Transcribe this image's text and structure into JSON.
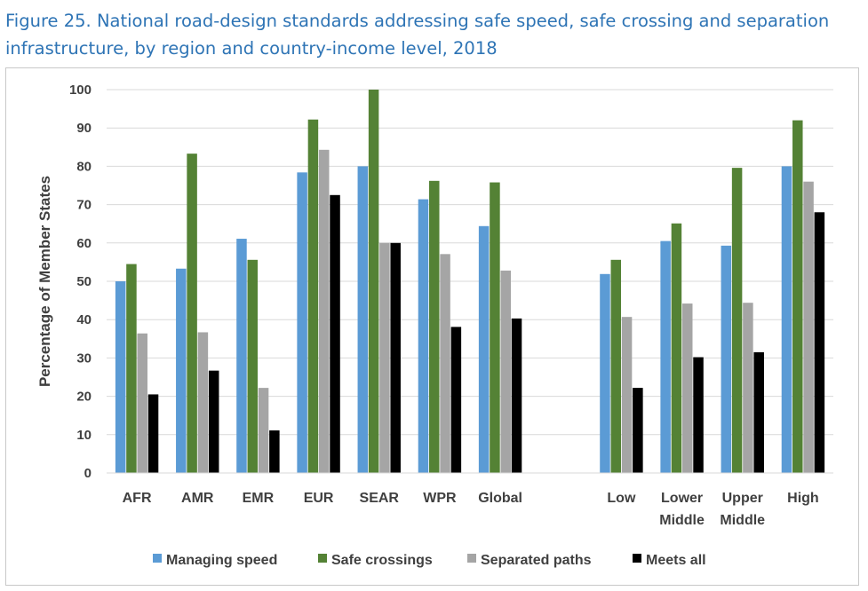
{
  "figure_title": "Figure 25. National road-design standards addressing safe speed, safe crossing and separation infrastructure, by region and country-income level, 2018",
  "chart_data": {
    "type": "bar",
    "title": "Figure 25. National road-design standards addressing safe speed, safe crossing and separation infrastructure, by region and country-income level, 2018",
    "xlabel": "",
    "ylabel": "Percentage of Member States",
    "ylim": [
      0,
      100
    ],
    "yticks": [
      0,
      10,
      20,
      30,
      40,
      50,
      60,
      70,
      80,
      90,
      100
    ],
    "grid": true,
    "legend_position": "bottom",
    "categories": [
      "AFR",
      "AMR",
      "EMR",
      "EUR",
      "SEAR",
      "WPR",
      "Global",
      "",
      "Low",
      "Lower Middle",
      "Upper Middle",
      "High"
    ],
    "category_lines": [
      [
        "AFR"
      ],
      [
        "AMR"
      ],
      [
        "EMR"
      ],
      [
        "EUR"
      ],
      [
        "SEAR"
      ],
      [
        "WPR"
      ],
      [
        "Global"
      ],
      [],
      [
        "Low"
      ],
      [
        "Lower",
        "Middle"
      ],
      [
        "Upper",
        "Middle"
      ],
      [
        "High"
      ]
    ],
    "series": [
      {
        "name": "Managing speed",
        "color": "#5b9bd5",
        "values": [
          50,
          53.3,
          61.1,
          78.4,
          80,
          71.4,
          64.4,
          null,
          51.9,
          60.5,
          59.3,
          80
        ]
      },
      {
        "name": "Safe crossings",
        "color": "#548235",
        "values": [
          54.5,
          83.3,
          55.6,
          92.2,
          100,
          76.2,
          75.8,
          null,
          55.6,
          65.1,
          79.6,
          92
        ]
      },
      {
        "name": "Separated paths",
        "color": "#a5a5a5",
        "values": [
          36.4,
          36.7,
          22.2,
          84.3,
          60,
          57.1,
          52.8,
          null,
          40.7,
          44.2,
          44.4,
          76
        ]
      },
      {
        "name": "Meets all",
        "color": "#000000",
        "values": [
          20.5,
          26.7,
          11.1,
          72.5,
          60,
          38.1,
          40.3,
          null,
          22.2,
          30.2,
          31.5,
          68
        ]
      }
    ]
  }
}
